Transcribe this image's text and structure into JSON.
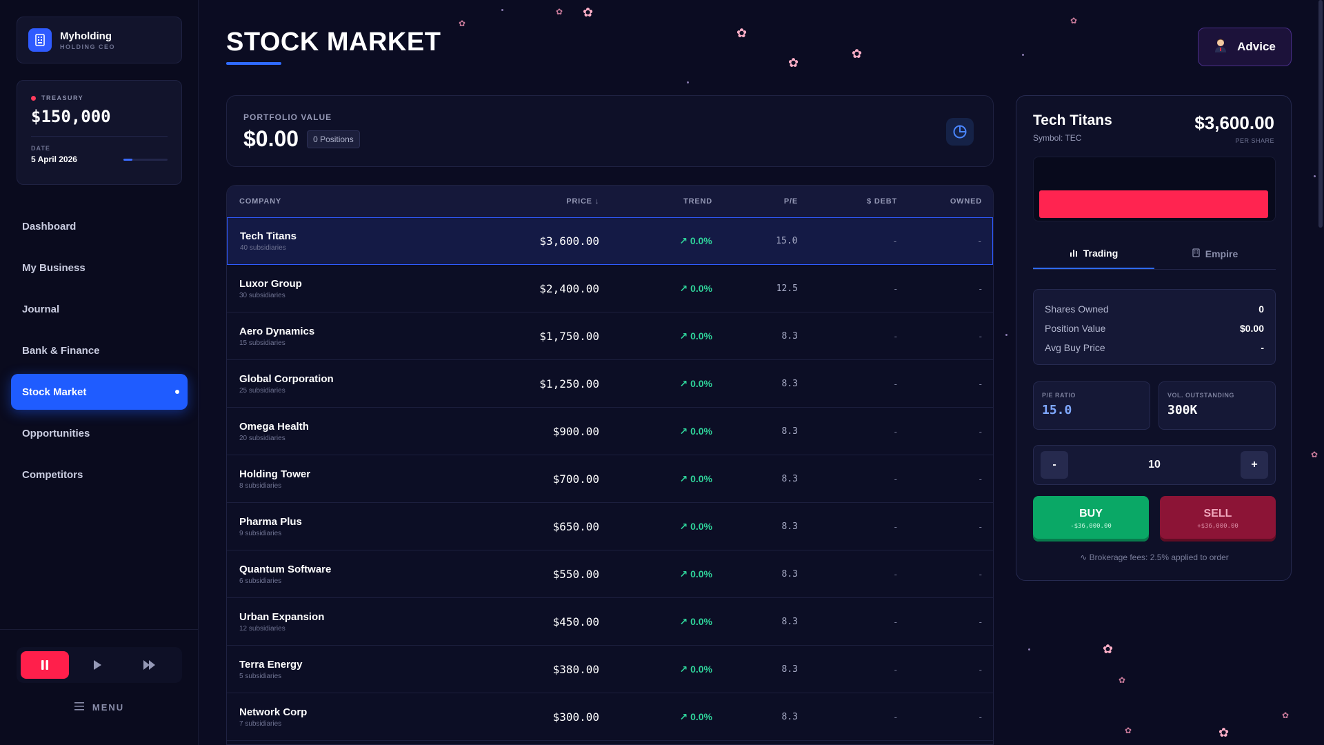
{
  "brand": {
    "name": "Myholding",
    "subtitle": "HOLDING CEO"
  },
  "treasury": {
    "label": "TREASURY",
    "value": "$150,000",
    "date_label": "DATE",
    "date": "5 April 2026",
    "date_progress": 0.2
  },
  "nav": [
    {
      "label": "Dashboard",
      "active": false
    },
    {
      "label": "My Business",
      "active": false
    },
    {
      "label": "Journal",
      "active": false
    },
    {
      "label": "Bank & Finance",
      "active": false
    },
    {
      "label": "Stock Market",
      "active": true
    },
    {
      "label": "Opportunities",
      "active": false
    },
    {
      "label": "Competitors",
      "active": false
    }
  ],
  "controls": {
    "pause_icon": "pause-icon",
    "play_icon": "play-icon",
    "fast_forward_icon": "fast-forward-icon"
  },
  "menu_label": "MENU",
  "page_title": "STOCK MARKET",
  "advice_label": "Advice",
  "portfolio": {
    "label": "PORTFOLIO VALUE",
    "value": "$0.00",
    "positions": "0 Positions"
  },
  "table": {
    "headers": {
      "company": "COMPANY",
      "price": "PRICE",
      "trend": "TREND",
      "pe": "P/E",
      "debt": "DEBT",
      "owned": "OWNED"
    },
    "rows": [
      {
        "name": "Tech Titans",
        "sub": "40 subsidiaries",
        "price": "$3,600.00",
        "trend": "0.0%",
        "pe": "15.0",
        "debt": "-",
        "owned": "-"
      },
      {
        "name": "Luxor Group",
        "sub": "30 subsidiaries",
        "price": "$2,400.00",
        "trend": "0.0%",
        "pe": "12.5",
        "debt": "-",
        "owned": "-"
      },
      {
        "name": "Aero Dynamics",
        "sub": "15 subsidiaries",
        "price": "$1,750.00",
        "trend": "0.0%",
        "pe": "8.3",
        "debt": "-",
        "owned": "-"
      },
      {
        "name": "Global Corporation",
        "sub": "25 subsidiaries",
        "price": "$1,250.00",
        "trend": "0.0%",
        "pe": "8.3",
        "debt": "-",
        "owned": "-"
      },
      {
        "name": "Omega Health",
        "sub": "20 subsidiaries",
        "price": "$900.00",
        "trend": "0.0%",
        "pe": "8.3",
        "debt": "-",
        "owned": "-"
      },
      {
        "name": "Holding Tower",
        "sub": "8 subsidiaries",
        "price": "$700.00",
        "trend": "0.0%",
        "pe": "8.3",
        "debt": "-",
        "owned": "-"
      },
      {
        "name": "Pharma Plus",
        "sub": "9 subsidiaries",
        "price": "$650.00",
        "trend": "0.0%",
        "pe": "8.3",
        "debt": "-",
        "owned": "-"
      },
      {
        "name": "Quantum Software",
        "sub": "6 subsidiaries",
        "price": "$550.00",
        "trend": "0.0%",
        "pe": "8.3",
        "debt": "-",
        "owned": "-"
      },
      {
        "name": "Urban Expansion",
        "sub": "12 subsidiaries",
        "price": "$450.00",
        "trend": "0.0%",
        "pe": "8.3",
        "debt": "-",
        "owned": "-"
      },
      {
        "name": "Terra Energy",
        "sub": "5 subsidiaries",
        "price": "$380.00",
        "trend": "0.0%",
        "pe": "8.3",
        "debt": "-",
        "owned": "-"
      },
      {
        "name": "Network Corp",
        "sub": "7 subsidiaries",
        "price": "$300.00",
        "trend": "0.0%",
        "pe": "8.3",
        "debt": "-",
        "owned": "-"
      }
    ]
  },
  "detail": {
    "name": "Tech Titans",
    "symbol": "Symbol: TEC",
    "price": "$3,600.00",
    "per_share": "PER SHARE",
    "tabs": [
      "Trading",
      "Empire"
    ],
    "stats": [
      {
        "label": "Shares Owned",
        "value": "0"
      },
      {
        "label": "Position Value",
        "value": "$0.00"
      },
      {
        "label": "Avg Buy Price",
        "value": "-"
      }
    ],
    "pe_label": "P/E RATIO",
    "pe_value": "15.0",
    "vol_label": "VOL. OUTSTANDING",
    "vol_value": "300K",
    "qty_minus": "-",
    "qty_value": "10",
    "qty_plus": "+",
    "buy_label": "BUY",
    "buy_sub": "-$36,000.00",
    "sell_label": "SELL",
    "sell_sub": "+$36,000.00",
    "fees": "Brokerage fees: 2.5% applied to order"
  },
  "colors": {
    "accent": "#1f5cff",
    "positive": "#2fd39a",
    "negative": "#ff2450",
    "buy": "#0aa866",
    "sell": "#8c1436"
  }
}
